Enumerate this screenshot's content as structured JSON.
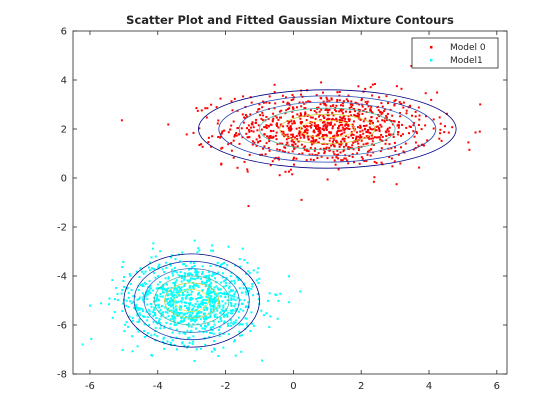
{
  "chart_data": {
    "type": "scatter",
    "title": "Scatter Plot and Fitted Gaussian Mixture Contours",
    "xlabel": "",
    "ylabel": "",
    "xlim": [
      -6.5,
      6.3
    ],
    "ylim": [
      -8,
      6
    ],
    "xticks": [
      -6,
      -4,
      -2,
      0,
      2,
      4,
      6
    ],
    "yticks": [
      -8,
      -6,
      -4,
      -2,
      0,
      2,
      4,
      6
    ],
    "grid": false,
    "legend_position": "top-right",
    "series": [
      {
        "name": "Model 0",
        "color": "#ff0000",
        "marker": "point",
        "n_points": 1000,
        "approx_center": [
          1.0,
          2.0
        ],
        "approx_spread": [
          1.5,
          0.75
        ]
      },
      {
        "name": "Model1",
        "color": "#00ffff",
        "marker": "point",
        "n_points": 1000,
        "approx_center": [
          -3.0,
          -5.0
        ],
        "approx_spread": [
          1.0,
          0.85
        ]
      }
    ],
    "contours": [
      {
        "component": 0,
        "center": [
          1.0,
          2.0
        ],
        "radii": [
          [
            3.8,
            1.6
          ],
          [
            3.2,
            1.35
          ],
          [
            2.6,
            1.1
          ],
          [
            2.0,
            0.85
          ],
          [
            1.4,
            0.6
          ],
          [
            0.8,
            0.35
          ]
        ]
      },
      {
        "component": 1,
        "center": [
          -3.0,
          -5.0
        ],
        "radii": [
          [
            2.0,
            1.9
          ],
          [
            1.7,
            1.6
          ],
          [
            1.4,
            1.3
          ],
          [
            1.1,
            1.0
          ],
          [
            0.8,
            0.72
          ],
          [
            0.5,
            0.45
          ]
        ]
      }
    ],
    "contour_colors": [
      "#000080",
      "#1f3fae",
      "#3a70c8",
      "#4cb4a0",
      "#c8c83c",
      "#f0e442"
    ]
  }
}
